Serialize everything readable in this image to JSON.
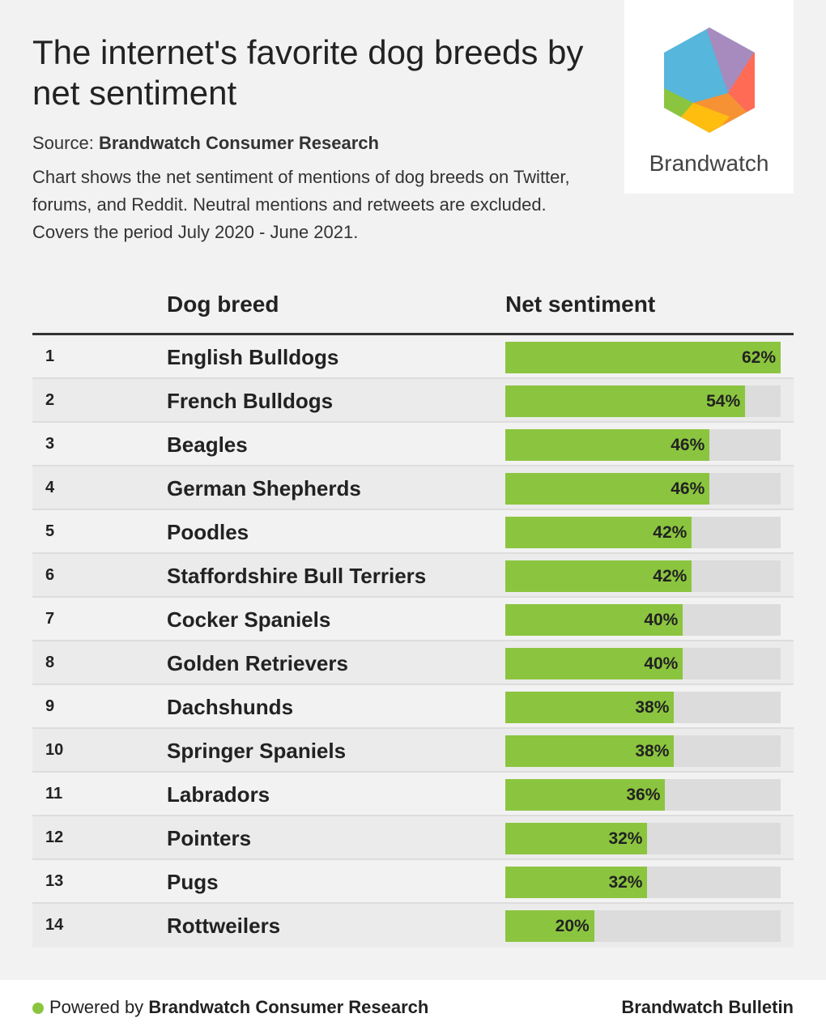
{
  "title": "The internet's favorite dog breeds by net sentiment",
  "source_label": "Source:",
  "source_name": "Brandwatch Consumer Research",
  "description": "Chart shows the net sentiment of mentions of dog breeds on Twitter, forums, and Reddit. Neutral mentions and retweets are excluded. Covers the period July 2020 - June 2021.",
  "logo_text": "Brandwatch",
  "colors": {
    "bar": "#8bc53f",
    "track": "#dcdcdc"
  },
  "chart_data": {
    "type": "table",
    "columns": [
      "Dog breed",
      "Net sentiment"
    ],
    "rows": [
      {
        "rank": "1",
        "breed": "English Bulldogs",
        "value": 62,
        "label": "62%"
      },
      {
        "rank": "2",
        "breed": "French Bulldogs",
        "value": 54,
        "label": "54%"
      },
      {
        "rank": "3",
        "breed": "Beagles",
        "value": 46,
        "label": "46%"
      },
      {
        "rank": "4",
        "breed": "German Shepherds",
        "value": 46,
        "label": "46%"
      },
      {
        "rank": "5",
        "breed": "Poodles",
        "value": 42,
        "label": "42%"
      },
      {
        "rank": "6",
        "breed": "Staffordshire Bull Terriers",
        "value": 42,
        "label": "42%"
      },
      {
        "rank": "7",
        "breed": "Cocker Spaniels",
        "value": 40,
        "label": "40%"
      },
      {
        "rank": "8",
        "breed": "Golden Retrievers",
        "value": 40,
        "label": "40%"
      },
      {
        "rank": "9",
        "breed": "Dachshunds",
        "value": 38,
        "label": "38%"
      },
      {
        "rank": "10",
        "breed": "Springer Spaniels",
        "value": 38,
        "label": "38%"
      },
      {
        "rank": "11",
        "breed": "Labradors",
        "value": 36,
        "label": "36%"
      },
      {
        "rank": "12",
        "breed": "Pointers",
        "value": 32,
        "label": "32%"
      },
      {
        "rank": "13",
        "breed": "Pugs",
        "value": 32,
        "label": "32%"
      },
      {
        "rank": "14",
        "breed": "Rottweilers",
        "value": 20,
        "label": "20%"
      }
    ],
    "max": 62
  },
  "footer": {
    "powered_prefix": "Powered by",
    "powered_name": "Brandwatch Consumer Research",
    "right": "Brandwatch Bulletin"
  }
}
